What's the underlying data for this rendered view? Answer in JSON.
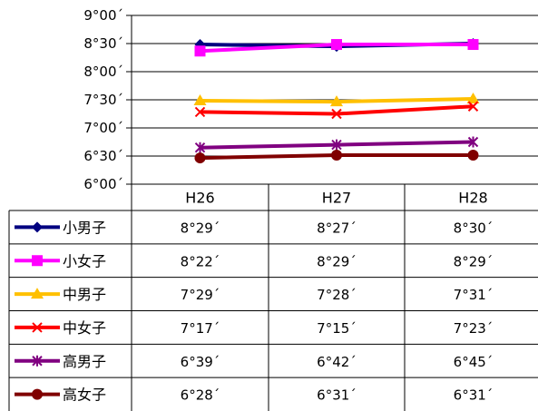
{
  "chart_data": {
    "type": "line",
    "categories": [
      "H26",
      "H27",
      "H28"
    ],
    "y_ticks": [
      "9°00´",
      "8°30´",
      "8°00´",
      "7°30´",
      "7°00´",
      "6°30´",
      "6°00´"
    ],
    "ylim_seconds": [
      360,
      540
    ],
    "grid": "horizontal",
    "legend": "data-table",
    "series": [
      {
        "name": "小男子",
        "color": "#000080",
        "marker": "diamond",
        "values": [
          509,
          507,
          510
        ],
        "labels": [
          "8°29´",
          "8°27´",
          "8°30´"
        ]
      },
      {
        "name": "小女子",
        "color": "#ff00ff",
        "marker": "square",
        "values": [
          502,
          509,
          509
        ],
        "labels": [
          "8°22´",
          "8°29´",
          "8°29´"
        ]
      },
      {
        "name": "中男子",
        "color": "#ffc000",
        "marker": "triangle",
        "values": [
          449,
          448,
          451
        ],
        "labels": [
          "7°29´",
          "7°28´",
          "7°31´"
        ]
      },
      {
        "name": "中女子",
        "color": "#ff0000",
        "marker": "x",
        "values": [
          437,
          435,
          443
        ],
        "labels": [
          "7°17´",
          "7°15´",
          "7°23´"
        ]
      },
      {
        "name": "高男子",
        "color": "#800080",
        "marker": "asterisk",
        "values": [
          399,
          402,
          405
        ],
        "labels": [
          "6°39´",
          "6°42´",
          "6°45´"
        ]
      },
      {
        "name": "高女子",
        "color": "#800000",
        "marker": "circle",
        "values": [
          388,
          391,
          391
        ],
        "labels": [
          "6°28´",
          "6°31´",
          "6°31´"
        ]
      }
    ]
  }
}
